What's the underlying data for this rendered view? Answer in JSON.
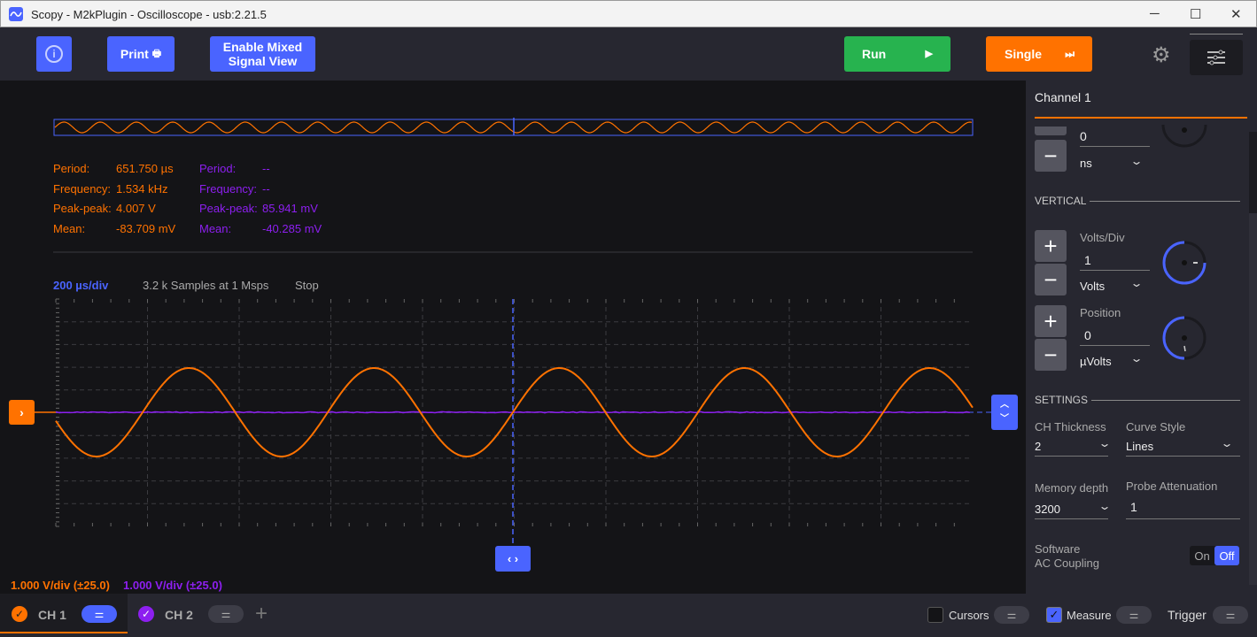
{
  "window": {
    "title": "Scopy - M2kPlugin - Oscilloscope - usb:2.21.5",
    "minimize": "─",
    "maximize": "☐",
    "close": "✕"
  },
  "toolbar": {
    "info": "i",
    "print": "Print",
    "print_icon": "🖶",
    "mixed": "Enable Mixed Signal View",
    "run": "Run",
    "run_icon": "▶",
    "single": "Single",
    "single_icon": "⏭",
    "gear": "⚙"
  },
  "measurements": {
    "ch1": [
      {
        "label": "Period:",
        "value": "651.750 µs"
      },
      {
        "label": "Frequency:",
        "value": "1.534 kHz"
      },
      {
        "label": "Peak-peak:",
        "value": "4.007 V"
      },
      {
        "label": "Mean:",
        "value": "-83.709 mV"
      }
    ],
    "ch2": [
      {
        "label": "Period:",
        "value": "--"
      },
      {
        "label": "Frequency:",
        "value": "--"
      },
      {
        "label": "Peak-peak:",
        "value": "85.941 mV"
      },
      {
        "label": "Mean:",
        "value": "-40.285 mV"
      }
    ]
  },
  "status": {
    "timebase": "200 µs/div",
    "samples": "3.2 k Samples at 1 Msps",
    "state": "Stop"
  },
  "scale": {
    "ch1": "1.000 V/div (±25.0)",
    "ch2": "1.000 V/div (±25.0)"
  },
  "colors": {
    "ch1": "#ff7200",
    "ch2": "#8d1ff0",
    "accent": "#4a64ff",
    "run": "#27b34f"
  },
  "side": {
    "title": "Channel 1",
    "top": {
      "value": "0",
      "unit": "ns"
    },
    "vertical": "VERTICAL",
    "volts_div": {
      "label": "Volts/Div",
      "value": "1",
      "unit": "Volts"
    },
    "position": {
      "label": "Position",
      "value": "0",
      "unit": "µVolts"
    },
    "settings": "SETTINGS",
    "thickness": {
      "label": "CH Thickness",
      "value": "2"
    },
    "curve": {
      "label": "Curve Style",
      "value": "Lines"
    },
    "memory": {
      "label": "Memory depth",
      "value": "3200"
    },
    "probe": {
      "label": "Probe Attenuation",
      "value": "1"
    },
    "ac": {
      "label1": "Software",
      "label2": "AC Coupling",
      "on": "On",
      "off": "Off"
    }
  },
  "bottom": {
    "ch1": "CH 1",
    "ch2": "CH 2",
    "add": "+",
    "cursors": "Cursors",
    "measure": "Measure",
    "trigger": "Trigger"
  }
}
